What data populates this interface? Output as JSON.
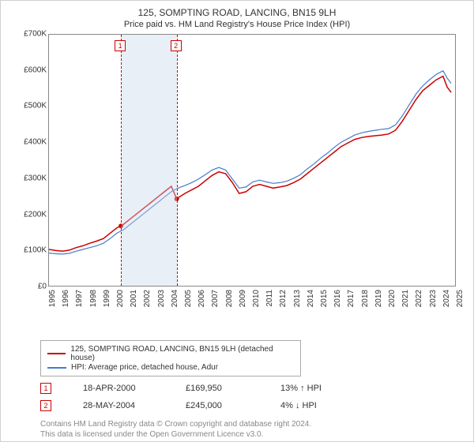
{
  "title": "125, SOMPTING ROAD, LANCING, BN15 9LH",
  "subtitle": "Price paid vs. HM Land Registry's House Price Index (HPI)",
  "chart": {
    "type": "line",
    "ylim": [
      0,
      700000
    ],
    "ytick_step": 100000,
    "yticks": [
      "£0",
      "£100K",
      "£200K",
      "£300K",
      "£400K",
      "£500K",
      "£600K",
      "£700K"
    ],
    "xlim": [
      1995,
      2025
    ],
    "xticks": [
      1995,
      1996,
      1997,
      1998,
      1999,
      2000,
      2001,
      2002,
      2003,
      2004,
      2005,
      2006,
      2007,
      2008,
      2009,
      2010,
      2011,
      2012,
      2013,
      2014,
      2015,
      2016,
      2017,
      2018,
      2019,
      2020,
      2021,
      2022,
      2023,
      2024,
      2025
    ],
    "band": {
      "start": 2000.3,
      "end": 2004.4,
      "color": "#cad7eb"
    },
    "vdash": [
      {
        "x": 2000.3,
        "color": "#cc0000"
      },
      {
        "x": 2004.4,
        "color": "#cc0000"
      }
    ],
    "marker_boxes": [
      {
        "label": "1",
        "x": 2000.3,
        "color": "#cc0000"
      },
      {
        "label": "2",
        "x": 2004.4,
        "color": "#cc0000"
      }
    ],
    "series": [
      {
        "name": "address",
        "color": "#cc0000",
        "width": 1.5,
        "label": "125, SOMPTING ROAD, LANCING, BN15 9LH (detached house)",
        "data": [
          [
            1995,
            105000
          ],
          [
            1995.5,
            102000
          ],
          [
            1996,
            100000
          ],
          [
            1996.5,
            103000
          ],
          [
            1997,
            110000
          ],
          [
            1997.5,
            115000
          ],
          [
            1998,
            122000
          ],
          [
            1998.5,
            128000
          ],
          [
            1999,
            135000
          ],
          [
            1999.5,
            150000
          ],
          [
            2000,
            165000
          ],
          [
            2000.3,
            170000
          ],
          [
            2000.5,
            175000
          ],
          [
            2001,
            190000
          ],
          [
            2001.5,
            205000
          ],
          [
            2002,
            220000
          ],
          [
            2002.5,
            235000
          ],
          [
            2003,
            250000
          ],
          [
            2003.5,
            265000
          ],
          [
            2004,
            280000
          ],
          [
            2004.4,
            245000
          ],
          [
            2004.5,
            248000
          ],
          [
            2005,
            260000
          ],
          [
            2005.5,
            270000
          ],
          [
            2006,
            280000
          ],
          [
            2006.5,
            295000
          ],
          [
            2007,
            310000
          ],
          [
            2007.5,
            320000
          ],
          [
            2008,
            315000
          ],
          [
            2008.5,
            290000
          ],
          [
            2009,
            260000
          ],
          [
            2009.5,
            265000
          ],
          [
            2010,
            280000
          ],
          [
            2010.5,
            285000
          ],
          [
            2011,
            280000
          ],
          [
            2011.5,
            275000
          ],
          [
            2012,
            278000
          ],
          [
            2012.5,
            282000
          ],
          [
            2013,
            290000
          ],
          [
            2013.5,
            300000
          ],
          [
            2014,
            315000
          ],
          [
            2014.5,
            330000
          ],
          [
            2015,
            345000
          ],
          [
            2015.5,
            360000
          ],
          [
            2016,
            375000
          ],
          [
            2016.5,
            390000
          ],
          [
            2017,
            400000
          ],
          [
            2017.5,
            410000
          ],
          [
            2018,
            415000
          ],
          [
            2018.5,
            418000
          ],
          [
            2019,
            420000
          ],
          [
            2019.5,
            422000
          ],
          [
            2020,
            425000
          ],
          [
            2020.5,
            435000
          ],
          [
            2021,
            460000
          ],
          [
            2021.5,
            490000
          ],
          [
            2022,
            520000
          ],
          [
            2022.5,
            545000
          ],
          [
            2023,
            560000
          ],
          [
            2023.5,
            575000
          ],
          [
            2024,
            585000
          ],
          [
            2024.3,
            555000
          ],
          [
            2024.6,
            540000
          ]
        ],
        "dots": [
          [
            2000.3,
            170000
          ],
          [
            2004.4,
            245000
          ]
        ]
      },
      {
        "name": "hpi",
        "color": "#4a7bc8",
        "width": 1.2,
        "label": "HPI: Average price, detached house, Adur",
        "data": [
          [
            1995,
            95000
          ],
          [
            1995.5,
            93000
          ],
          [
            1996,
            92000
          ],
          [
            1996.5,
            94000
          ],
          [
            1997,
            100000
          ],
          [
            1997.5,
            105000
          ],
          [
            1998,
            110000
          ],
          [
            1998.5,
            115000
          ],
          [
            1999,
            122000
          ],
          [
            1999.5,
            135000
          ],
          [
            2000,
            150000
          ],
          [
            2000.5,
            160000
          ],
          [
            2001,
            175000
          ],
          [
            2001.5,
            190000
          ],
          [
            2002,
            205000
          ],
          [
            2002.5,
            220000
          ],
          [
            2003,
            235000
          ],
          [
            2003.5,
            250000
          ],
          [
            2004,
            265000
          ],
          [
            2004.5,
            275000
          ],
          [
            2005,
            282000
          ],
          [
            2005.5,
            290000
          ],
          [
            2006,
            300000
          ],
          [
            2006.5,
            312000
          ],
          [
            2007,
            325000
          ],
          [
            2007.5,
            332000
          ],
          [
            2008,
            325000
          ],
          [
            2008.5,
            300000
          ],
          [
            2009,
            275000
          ],
          [
            2009.5,
            278000
          ],
          [
            2010,
            292000
          ],
          [
            2010.5,
            297000
          ],
          [
            2011,
            292000
          ],
          [
            2011.5,
            288000
          ],
          [
            2012,
            290000
          ],
          [
            2012.5,
            294000
          ],
          [
            2013,
            302000
          ],
          [
            2013.5,
            312000
          ],
          [
            2014,
            328000
          ],
          [
            2014.5,
            342000
          ],
          [
            2015,
            358000
          ],
          [
            2015.5,
            372000
          ],
          [
            2016,
            388000
          ],
          [
            2016.5,
            402000
          ],
          [
            2017,
            412000
          ],
          [
            2017.5,
            422000
          ],
          [
            2018,
            428000
          ],
          [
            2018.5,
            432000
          ],
          [
            2019,
            435000
          ],
          [
            2019.5,
            438000
          ],
          [
            2020,
            440000
          ],
          [
            2020.5,
            450000
          ],
          [
            2021,
            475000
          ],
          [
            2021.5,
            505000
          ],
          [
            2022,
            535000
          ],
          [
            2022.5,
            558000
          ],
          [
            2023,
            575000
          ],
          [
            2023.5,
            590000
          ],
          [
            2024,
            600000
          ],
          [
            2024.3,
            580000
          ],
          [
            2024.6,
            565000
          ]
        ]
      }
    ]
  },
  "legend": {
    "rows": [
      {
        "color": "#cc0000",
        "label": "125, SOMPTING ROAD, LANCING, BN15 9LH (detached house)"
      },
      {
        "color": "#4a7bc8",
        "label": "HPI: Average price, detached house, Adur"
      }
    ]
  },
  "sales": [
    {
      "num": "1",
      "color": "#cc0000",
      "date": "18-APR-2000",
      "price": "£169,950",
      "rel": "13% ↑ HPI"
    },
    {
      "num": "2",
      "color": "#cc0000",
      "date": "28-MAY-2004",
      "price": "£245,000",
      "rel": "4% ↓ HPI"
    }
  ],
  "footnote1": "Contains HM Land Registry data © Crown copyright and database right 2024.",
  "footnote2": "This data is licensed under the Open Government Licence v3.0."
}
